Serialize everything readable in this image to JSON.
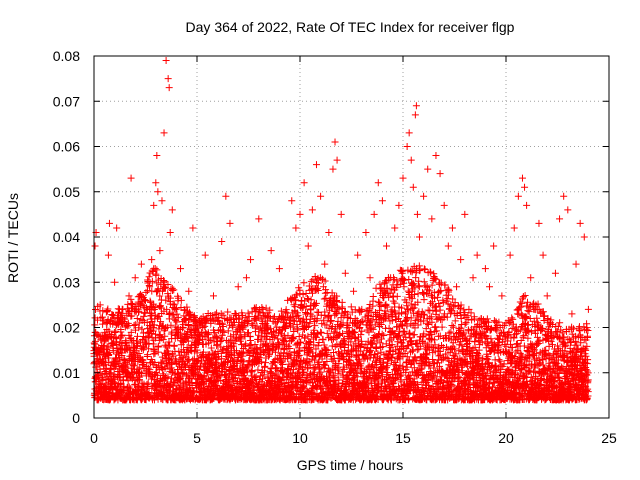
{
  "chart_data": {
    "type": "scatter",
    "title": "Day 364 of 2022, Rate Of TEC Index for receiver flgp",
    "xlabel": "GPS time / hours",
    "ylabel": "ROTI / TECUs",
    "xlim": [
      0,
      25
    ],
    "ylim": [
      0,
      0.08
    ],
    "xticks": [
      0,
      5,
      10,
      15,
      20,
      25
    ],
    "xtick_labels": [
      "0",
      "5",
      "10",
      "15",
      "20",
      "25"
    ],
    "yticks": [
      0,
      0.01,
      0.02,
      0.03,
      0.04,
      0.05,
      0.06,
      0.07,
      0.08
    ],
    "ytick_labels": [
      "0",
      "0.01",
      "0.02",
      "0.03",
      "0.04",
      "0.05",
      "0.06",
      "0.07",
      "0.08"
    ],
    "grid": true,
    "marker": "plus",
    "series": [
      {
        "name": "ROTI",
        "color": "#ff0000",
        "points": [
          [
            0.0,
            0.012
          ],
          [
            0.05,
            0.038
          ],
          [
            0.1,
            0.041
          ],
          [
            0.15,
            0.015
          ],
          [
            0.2,
            0.009
          ],
          [
            0.3,
            0.025
          ],
          [
            0.4,
            0.018
          ],
          [
            0.5,
            0.014
          ],
          [
            0.6,
            0.021
          ],
          [
            0.7,
            0.036
          ],
          [
            0.75,
            0.043
          ],
          [
            0.8,
            0.011
          ],
          [
            0.9,
            0.008
          ],
          [
            1.0,
            0.03
          ],
          [
            1.1,
            0.042
          ],
          [
            1.2,
            0.012
          ],
          [
            1.3,
            0.019
          ],
          [
            1.4,
            0.024
          ],
          [
            1.5,
            0.01
          ],
          [
            1.6,
            0.016
          ],
          [
            1.7,
            0.027
          ],
          [
            1.8,
            0.053
          ],
          [
            1.9,
            0.013
          ],
          [
            2.0,
            0.031
          ],
          [
            2.1,
            0.022
          ],
          [
            2.2,
            0.009
          ],
          [
            2.3,
            0.034
          ],
          [
            2.4,
            0.018
          ],
          [
            2.5,
            0.026
          ],
          [
            2.6,
            0.014
          ],
          [
            2.7,
            0.029
          ],
          [
            2.8,
            0.035
          ],
          [
            2.9,
            0.047
          ],
          [
            3.0,
            0.052
          ],
          [
            3.05,
            0.058
          ],
          [
            3.1,
            0.05
          ],
          [
            3.2,
            0.037
          ],
          [
            3.3,
            0.048
          ],
          [
            3.4,
            0.063
          ],
          [
            3.5,
            0.079
          ],
          [
            3.6,
            0.075
          ],
          [
            3.65,
            0.073
          ],
          [
            3.7,
            0.041
          ],
          [
            3.8,
            0.046
          ],
          [
            3.9,
            0.025
          ],
          [
            4.0,
            0.019
          ],
          [
            4.2,
            0.033
          ],
          [
            4.4,
            0.012
          ],
          [
            4.6,
            0.028
          ],
          [
            4.8,
            0.042
          ],
          [
            5.0,
            0.015
          ],
          [
            5.2,
            0.022
          ],
          [
            5.4,
            0.036
          ],
          [
            5.6,
            0.011
          ],
          [
            5.8,
            0.027
          ],
          [
            6.0,
            0.017
          ],
          [
            6.2,
            0.039
          ],
          [
            6.4,
            0.049
          ],
          [
            6.6,
            0.043
          ],
          [
            6.8,
            0.013
          ],
          [
            7.0,
            0.029
          ],
          [
            7.2,
            0.02
          ],
          [
            7.4,
            0.031
          ],
          [
            7.6,
            0.035
          ],
          [
            7.8,
            0.012
          ],
          [
            8.0,
            0.044
          ],
          [
            8.2,
            0.024
          ],
          [
            8.4,
            0.016
          ],
          [
            8.6,
            0.037
          ],
          [
            8.8,
            0.021
          ],
          [
            9.0,
            0.033
          ],
          [
            9.2,
            0.01
          ],
          [
            9.4,
            0.026
          ],
          [
            9.6,
            0.048
          ],
          [
            9.8,
            0.042
          ],
          [
            10.0,
            0.045
          ],
          [
            10.2,
            0.052
          ],
          [
            10.4,
            0.038
          ],
          [
            10.6,
            0.046
          ],
          [
            10.8,
            0.056
          ],
          [
            11.0,
            0.049
          ],
          [
            11.2,
            0.034
          ],
          [
            11.4,
            0.041
          ],
          [
            11.6,
            0.055
          ],
          [
            11.7,
            0.061
          ],
          [
            11.8,
            0.057
          ],
          [
            12.0,
            0.045
          ],
          [
            12.2,
            0.032
          ],
          [
            12.4,
            0.019
          ],
          [
            12.6,
            0.028
          ],
          [
            12.8,
            0.036
          ],
          [
            13.0,
            0.024
          ],
          [
            13.2,
            0.041
          ],
          [
            13.4,
            0.031
          ],
          [
            13.6,
            0.045
          ],
          [
            13.8,
            0.052
          ],
          [
            14.0,
            0.048
          ],
          [
            14.2,
            0.038
          ],
          [
            14.4,
            0.031
          ],
          [
            14.6,
            0.042
          ],
          [
            14.8,
            0.047
          ],
          [
            15.0,
            0.053
          ],
          [
            15.2,
            0.06
          ],
          [
            15.3,
            0.063
          ],
          [
            15.4,
            0.057
          ],
          [
            15.5,
            0.051
          ],
          [
            15.6,
            0.067
          ],
          [
            15.65,
            0.069
          ],
          [
            15.7,
            0.045
          ],
          [
            15.8,
            0.04
          ],
          [
            16.0,
            0.049
          ],
          [
            16.2,
            0.055
          ],
          [
            16.4,
            0.044
          ],
          [
            16.6,
            0.058
          ],
          [
            16.8,
            0.054
          ],
          [
            17.0,
            0.047
          ],
          [
            17.2,
            0.038
          ],
          [
            17.4,
            0.042
          ],
          [
            17.6,
            0.029
          ],
          [
            17.8,
            0.035
          ],
          [
            18.0,
            0.045
          ],
          [
            18.2,
            0.024
          ],
          [
            18.4,
            0.031
          ],
          [
            18.6,
            0.036
          ],
          [
            18.8,
            0.022
          ],
          [
            19.0,
            0.033
          ],
          [
            19.2,
            0.029
          ],
          [
            19.4,
            0.038
          ],
          [
            19.6,
            0.016
          ],
          [
            19.8,
            0.027
          ],
          [
            20.0,
            0.021
          ],
          [
            20.2,
            0.036
          ],
          [
            20.4,
            0.042
          ],
          [
            20.6,
            0.049
          ],
          [
            20.8,
            0.053
          ],
          [
            20.9,
            0.051
          ],
          [
            21.0,
            0.047
          ],
          [
            21.2,
            0.031
          ],
          [
            21.4,
            0.024
          ],
          [
            21.6,
            0.043
          ],
          [
            21.8,
            0.036
          ],
          [
            22.0,
            0.027
          ],
          [
            22.2,
            0.019
          ],
          [
            22.4,
            0.032
          ],
          [
            22.6,
            0.044
          ],
          [
            22.8,
            0.049
          ],
          [
            23.0,
            0.046
          ],
          [
            23.2,
            0.023
          ],
          [
            23.4,
            0.034
          ],
          [
            23.6,
            0.043
          ],
          [
            23.8,
            0.04
          ],
          [
            24.0,
            0.024
          ]
        ],
        "envelope": [
          [
            0,
            0.025
          ],
          [
            1,
            0.024
          ],
          [
            2,
            0.027
          ],
          [
            3,
            0.034
          ],
          [
            4,
            0.028
          ],
          [
            5,
            0.022
          ],
          [
            6,
            0.024
          ],
          [
            7,
            0.023
          ],
          [
            8,
            0.025
          ],
          [
            9,
            0.023
          ],
          [
            10,
            0.03
          ],
          [
            11,
            0.032
          ],
          [
            12,
            0.026
          ],
          [
            13,
            0.024
          ],
          [
            14,
            0.031
          ],
          [
            15,
            0.033
          ],
          [
            16,
            0.034
          ],
          [
            17,
            0.03
          ],
          [
            18,
            0.024
          ],
          [
            19,
            0.022
          ],
          [
            20,
            0.021
          ],
          [
            21,
            0.028
          ],
          [
            22,
            0.023
          ],
          [
            23,
            0.02
          ],
          [
            24,
            0.021
          ]
        ]
      }
    ]
  }
}
